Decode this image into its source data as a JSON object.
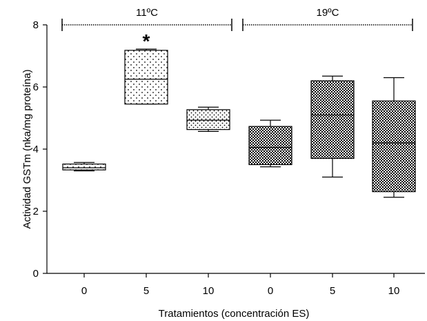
{
  "chart_data": {
    "type": "box",
    "xlabel": "Tratamientos (concentración ES)",
    "ylabel": "Actividad GSTm (nka/mg proteína)",
    "ylim": [
      0,
      8
    ],
    "yticks": [
      0,
      2,
      4,
      6,
      8
    ],
    "groups": [
      {
        "label": "11ºC",
        "categories": [
          0,
          1,
          2
        ]
      },
      {
        "label": "19ºC",
        "categories": [
          3,
          4,
          5
        ]
      }
    ],
    "categories": [
      "0",
      "5",
      "10",
      "0",
      "5",
      "10"
    ],
    "boxes": [
      {
        "min": 3.3,
        "q1": 3.33,
        "median": 3.4,
        "q3": 3.52,
        "max": 3.57,
        "pattern": "sparse-dots"
      },
      {
        "min": 5.45,
        "q1": 5.45,
        "median": 6.25,
        "q3": 7.18,
        "max": 7.22,
        "pattern": "sparse-dots",
        "annotation": "*"
      },
      {
        "min": 4.57,
        "q1": 4.63,
        "median": 4.93,
        "q3": 5.27,
        "max": 5.35,
        "pattern": "dense-dots"
      },
      {
        "min": 3.43,
        "q1": 3.5,
        "median": 4.05,
        "q3": 4.73,
        "max": 4.93,
        "pattern": "checker"
      },
      {
        "min": 3.1,
        "q1": 3.7,
        "median": 5.1,
        "q3": 6.2,
        "max": 6.35,
        "pattern": "checker"
      },
      {
        "min": 2.45,
        "q1": 2.63,
        "median": 4.2,
        "q3": 5.55,
        "max": 6.3,
        "pattern": "checker"
      }
    ]
  }
}
